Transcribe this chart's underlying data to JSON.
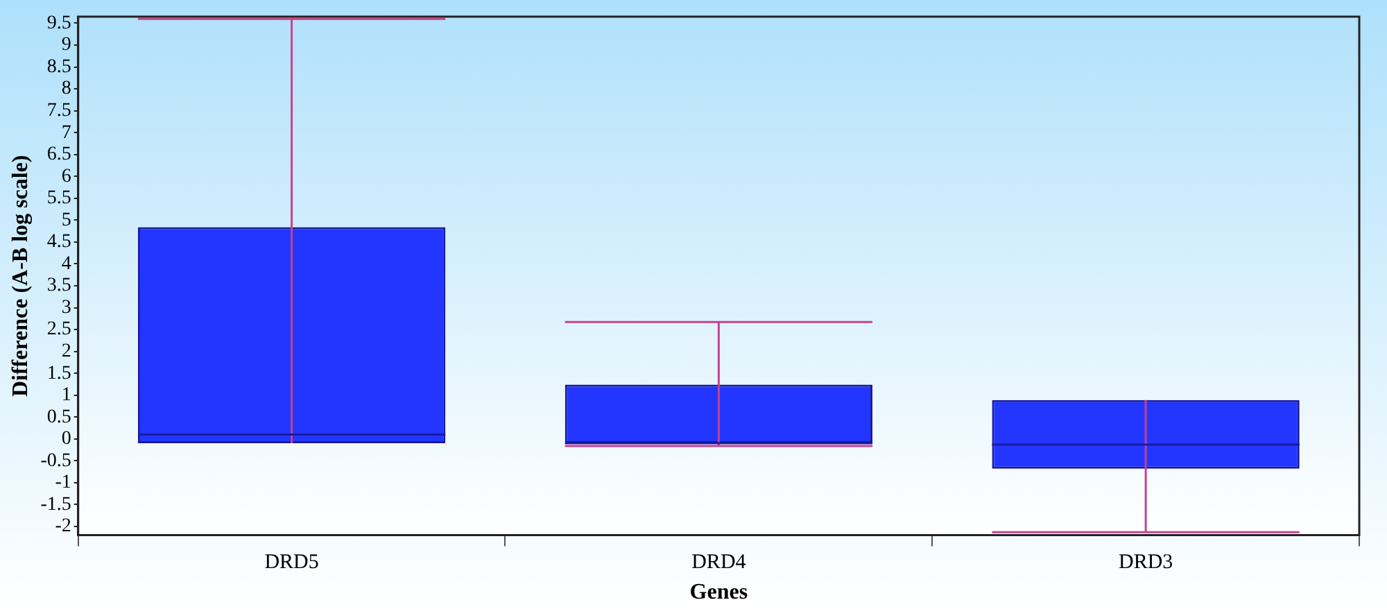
{
  "chart_data": {
    "type": "box",
    "xlabel": "Genes",
    "ylabel": "Difference (A-B log scale)",
    "categories": [
      "DRD5",
      "DRD4",
      "DRD3"
    ],
    "series": [
      {
        "color": "#2236ff",
        "boxes": [
          {
            "low": -0.1,
            "q1": -0.1,
            "median": 0.1,
            "q3": 4.84,
            "high": 9.6
          },
          {
            "low": -0.16,
            "q1": -0.1,
            "median": -0.1,
            "q3": 1.24,
            "high": 2.67
          },
          {
            "low": -2.13,
            "q1": -0.68,
            "median": -0.13,
            "q3": 0.89,
            "high": 0.89
          }
        ]
      }
    ],
    "ylim": [
      -2.2,
      9.65
    ],
    "yticks": [
      -2,
      -1.5,
      -1,
      -0.5,
      0,
      0.5,
      1,
      1.5,
      2,
      2.5,
      3,
      3.5,
      4,
      4.5,
      5,
      5.5,
      6,
      6.5,
      7,
      7.5,
      8,
      8.5,
      9,
      9.5
    ],
    "grid": false,
    "legend": false
  }
}
